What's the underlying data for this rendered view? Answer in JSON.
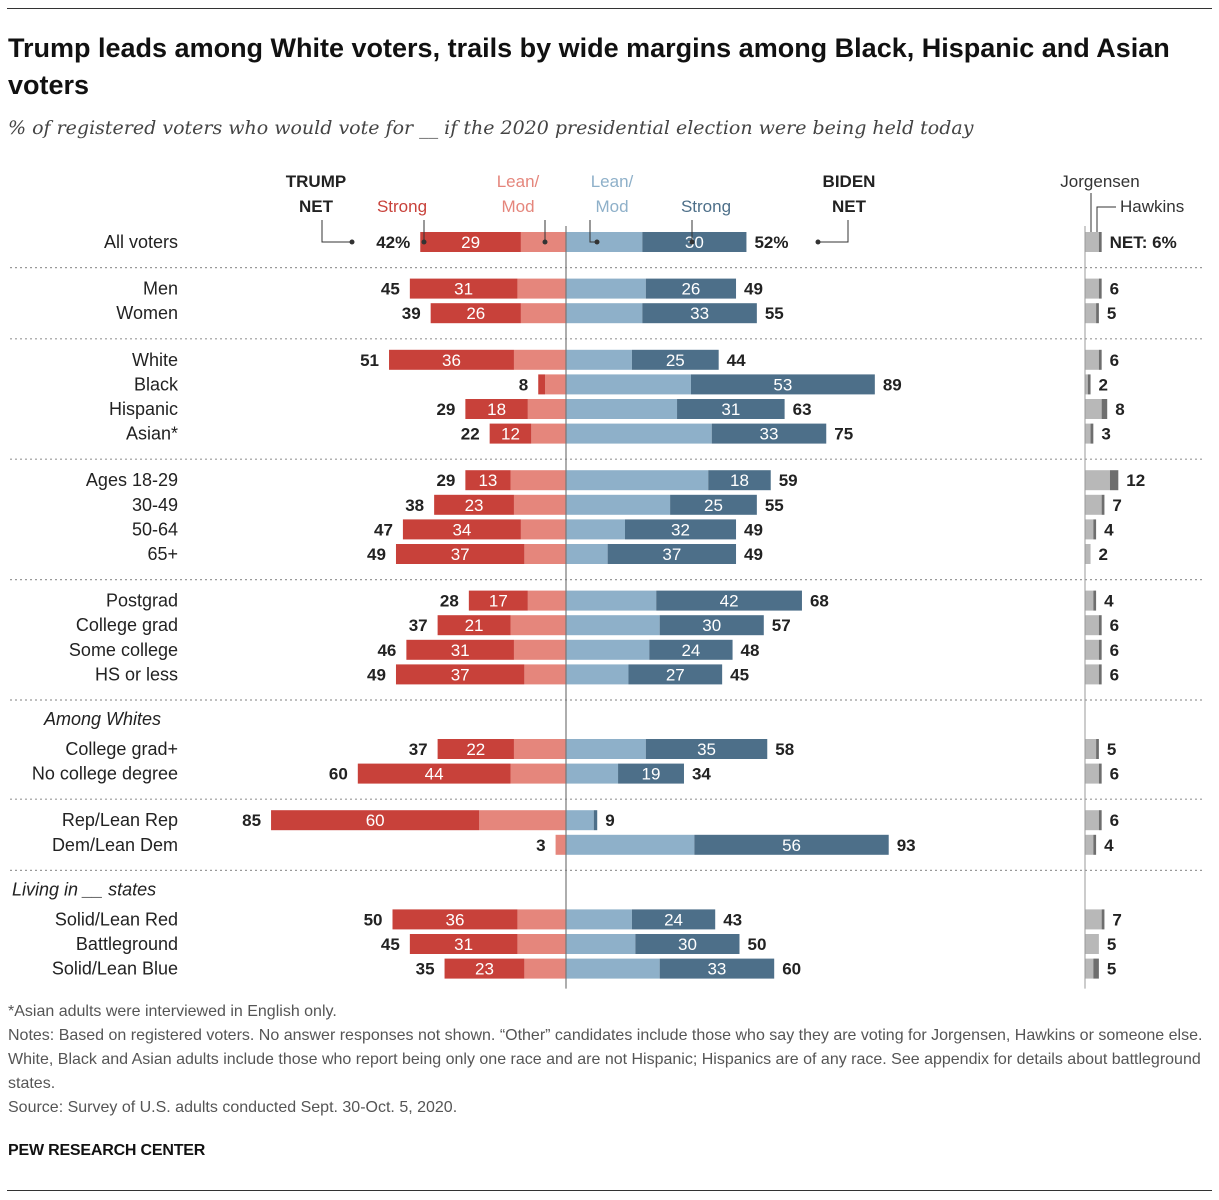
{
  "header": {
    "title": "Trump leads among White voters, trails by wide margins among Black, Hispanic and Asian voters",
    "subtitle": "% of registered voters who would vote for __ if the 2020 presidential election were being held today"
  },
  "colors": {
    "trump_strong": "#c8413a",
    "trump_lean": "#e5867c",
    "biden_lean": "#8eb0c9",
    "biden_strong": "#4d6f89",
    "jorgensen": "#b8b8b8",
    "hawkins": "#6e6e6e",
    "label_trump_strong": "#c8413a",
    "label_trump_lean": "#e5867c",
    "label_biden_lean": "#8eb0c9",
    "label_biden_strong": "#4d6f89"
  },
  "legend": {
    "trump_net": [
      "TRUMP",
      "NET"
    ],
    "trump_strong": "Strong",
    "trump_lean": [
      "Lean/",
      "Mod"
    ],
    "biden_lean": [
      "Lean/",
      "Mod"
    ],
    "biden_strong": "Strong",
    "biden_net": [
      "BIDEN",
      "NET"
    ],
    "jorgensen": "Jorgensen",
    "hawkins": "Hawkins"
  },
  "chart_data": {
    "type": "bar",
    "title": "Trump leads among White voters, trails by wide margins among Black, Hispanic and Asian voters",
    "subtitle": "% of registered voters who would vote for __ if the 2020 presidential election were being held today",
    "xlabel": "",
    "ylabel": "",
    "orientation": "horizontal-diverging",
    "series": [
      {
        "name": "Trump Strong"
      },
      {
        "name": "Trump Lean/Mod"
      },
      {
        "name": "Biden Lean/Mod"
      },
      {
        "name": "Biden Strong"
      },
      {
        "name": "Jorgensen"
      },
      {
        "name": "Hawkins"
      }
    ],
    "groups": [
      {
        "heading": "",
        "rows": [
          {
            "label": "All voters",
            "trump_net": 42,
            "trump_strong": 29,
            "biden_net": 52,
            "biden_strong": 30,
            "other_net": 6,
            "jorgensen": 5,
            "hawkins": 1,
            "first": true
          }
        ]
      },
      {
        "heading": "",
        "rows": [
          {
            "label": "Men",
            "trump_net": 45,
            "trump_strong": 31,
            "biden_net": 49,
            "biden_strong": 26,
            "other_net": 6,
            "jorgensen": 5,
            "hawkins": 1
          },
          {
            "label": "Women",
            "trump_net": 39,
            "trump_strong": 26,
            "biden_net": 55,
            "biden_strong": 33,
            "other_net": 5,
            "jorgensen": 4,
            "hawkins": 1
          }
        ]
      },
      {
        "heading": "",
        "rows": [
          {
            "label": "White",
            "trump_net": 51,
            "trump_strong": 36,
            "biden_net": 44,
            "biden_strong": 25,
            "other_net": 6,
            "jorgensen": 5,
            "hawkins": 1
          },
          {
            "label": "Black",
            "trump_net": 8,
            "trump_strong": 2,
            "biden_net": 89,
            "biden_strong": 53,
            "other_net": 2,
            "jorgensen": 1,
            "hawkins": 1
          },
          {
            "label": "Hispanic",
            "trump_net": 29,
            "trump_strong": 18,
            "biden_net": 63,
            "biden_strong": 31,
            "other_net": 8,
            "jorgensen": 6,
            "hawkins": 2
          },
          {
            "label": "Asian*",
            "trump_net": 22,
            "trump_strong": 12,
            "biden_net": 75,
            "biden_strong": 33,
            "other_net": 3,
            "jorgensen": 2,
            "hawkins": 1
          }
        ]
      },
      {
        "heading": "",
        "rows": [
          {
            "label": "Ages 18-29",
            "trump_net": 29,
            "trump_strong": 13,
            "biden_net": 59,
            "biden_strong": 18,
            "other_net": 12,
            "jorgensen": 9,
            "hawkins": 3
          },
          {
            "label": "30-49",
            "trump_net": 38,
            "trump_strong": 23,
            "biden_net": 55,
            "biden_strong": 25,
            "other_net": 7,
            "jorgensen": 6,
            "hawkins": 1
          },
          {
            "label": "50-64",
            "trump_net": 47,
            "trump_strong": 34,
            "biden_net": 49,
            "biden_strong": 32,
            "other_net": 4,
            "jorgensen": 3,
            "hawkins": 1
          },
          {
            "label": "65+",
            "trump_net": 49,
            "trump_strong": 37,
            "biden_net": 49,
            "biden_strong": 37,
            "other_net": 2,
            "jorgensen": 2,
            "hawkins": 0
          }
        ]
      },
      {
        "heading": "",
        "rows": [
          {
            "label": "Postgrad",
            "trump_net": 28,
            "trump_strong": 17,
            "biden_net": 68,
            "biden_strong": 42,
            "other_net": 4,
            "jorgensen": 3,
            "hawkins": 1
          },
          {
            "label": "College grad",
            "trump_net": 37,
            "trump_strong": 21,
            "biden_net": 57,
            "biden_strong": 30,
            "other_net": 6,
            "jorgensen": 5,
            "hawkins": 1
          },
          {
            "label": "Some college",
            "trump_net": 46,
            "trump_strong": 31,
            "biden_net": 48,
            "biden_strong": 24,
            "other_net": 6,
            "jorgensen": 5,
            "hawkins": 1
          },
          {
            "label": "HS or less",
            "trump_net": 49,
            "trump_strong": 37,
            "biden_net": 45,
            "biden_strong": 27,
            "other_net": 6,
            "jorgensen": 5,
            "hawkins": 1
          }
        ]
      },
      {
        "heading": "Among Whites",
        "rows": [
          {
            "label": "College grad+",
            "trump_net": 37,
            "trump_strong": 22,
            "biden_net": 58,
            "biden_strong": 35,
            "other_net": 5,
            "jorgensen": 4,
            "hawkins": 1
          },
          {
            "label": "No college degree",
            "trump_net": 60,
            "trump_strong": 44,
            "biden_net": 34,
            "biden_strong": 19,
            "other_net": 6,
            "jorgensen": 5,
            "hawkins": 1
          }
        ]
      },
      {
        "heading": "",
        "rows": [
          {
            "label": "Rep/Lean Rep",
            "trump_net": 85,
            "trump_strong": 60,
            "biden_net": 9,
            "biden_strong": 1,
            "other_net": 6,
            "jorgensen": 5,
            "hawkins": 1
          },
          {
            "label": "Dem/Lean Dem",
            "trump_net": 3,
            "trump_strong": 0,
            "biden_net": 93,
            "biden_strong": 56,
            "other_net": 4,
            "jorgensen": 3,
            "hawkins": 1
          }
        ]
      },
      {
        "heading": "Living in __ states",
        "rows": [
          {
            "label": "Solid/Lean Red",
            "trump_net": 50,
            "trump_strong": 36,
            "biden_net": 43,
            "biden_strong": 24,
            "other_net": 7,
            "jorgensen": 6,
            "hawkins": 1
          },
          {
            "label": "Battleground",
            "trump_net": 45,
            "trump_strong": 31,
            "biden_net": 50,
            "biden_strong": 30,
            "other_net": 5,
            "jorgensen": 5,
            "hawkins": 0
          },
          {
            "label": "Solid/Lean Blue",
            "trump_net": 35,
            "trump_strong": 23,
            "biden_net": 60,
            "biden_strong": 33,
            "other_net": 5,
            "jorgensen": 3,
            "hawkins": 2
          }
        ]
      }
    ],
    "first_row_format": {
      "trump_net_suffix": "%",
      "biden_net_suffix": "%",
      "other_prefix": "NET: ",
      "other_suffix": "%"
    },
    "hidden_strong_labels": [
      "Black",
      "Rep/Lean Rep",
      "Dem/Lean Dem"
    ],
    "grid": false,
    "legend_position": "top"
  },
  "footer": {
    "footnote": "*Asian adults were interviewed in English only.",
    "notes": "Notes: Based on registered voters. No answer responses not shown. “Other” candidates include those who say they are voting for Jorgensen, Hawkins or someone else. White, Black and Asian adults include those who report being only one race and are not Hispanic; Hispanics are of any race. See appendix for details about battleground states.",
    "source": "Source: Survey of U.S. adults conducted Sept. 30-Oct. 5, 2020.",
    "brand": "PEW RESEARCH CENTER"
  }
}
